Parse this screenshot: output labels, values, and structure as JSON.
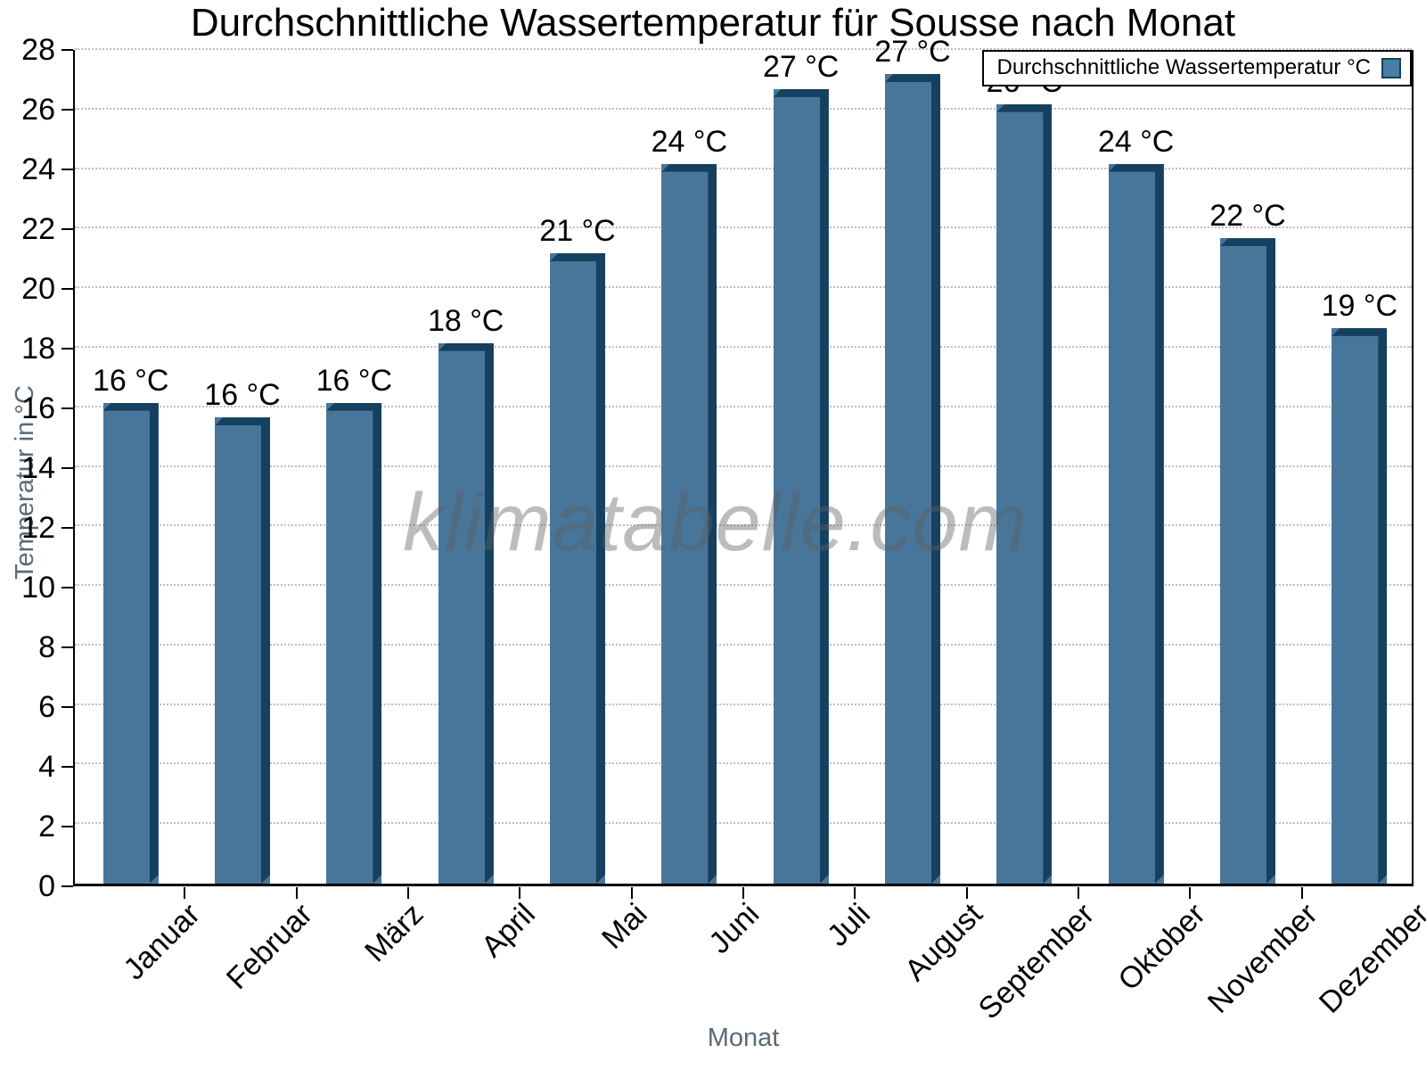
{
  "chart_data": {
    "type": "bar",
    "title": "Durchschnittliche Wassertemperatur für Sousse nach Monat",
    "xlabel": "Monat",
    "ylabel": "Temperatur in °C",
    "categories": [
      "Januar",
      "Februar",
      "März",
      "April",
      "Mai",
      "Juni",
      "Juli",
      "August",
      "September",
      "Oktober",
      "November",
      "Dezember"
    ],
    "values": [
      16.1,
      15.6,
      16.1,
      18.1,
      21.1,
      24.1,
      26.6,
      27.1,
      26.1,
      24.1,
      21.6,
      18.6
    ],
    "bar_labels": [
      "16 °C",
      "16 °C",
      "16 °C",
      "18 °C",
      "21 °C",
      "24 °C",
      "27 °C",
      "27 °C",
      "26 °C",
      "24 °C",
      "22 °C",
      "19 °C"
    ],
    "ylim": [
      0,
      28
    ],
    "ytick_step": 2,
    "grid": "dotted-horizontal",
    "legend": {
      "label": "Durchschnittliche Wassertemperatur °C",
      "position": "top-right"
    },
    "watermark": "klimatabelle.com",
    "colors": {
      "bar_face": "#48769A",
      "bar_edge": "#15405F",
      "gridline": "#bfbfbf",
      "axis_title_text": "#5A6A78",
      "text": "#000000"
    }
  }
}
